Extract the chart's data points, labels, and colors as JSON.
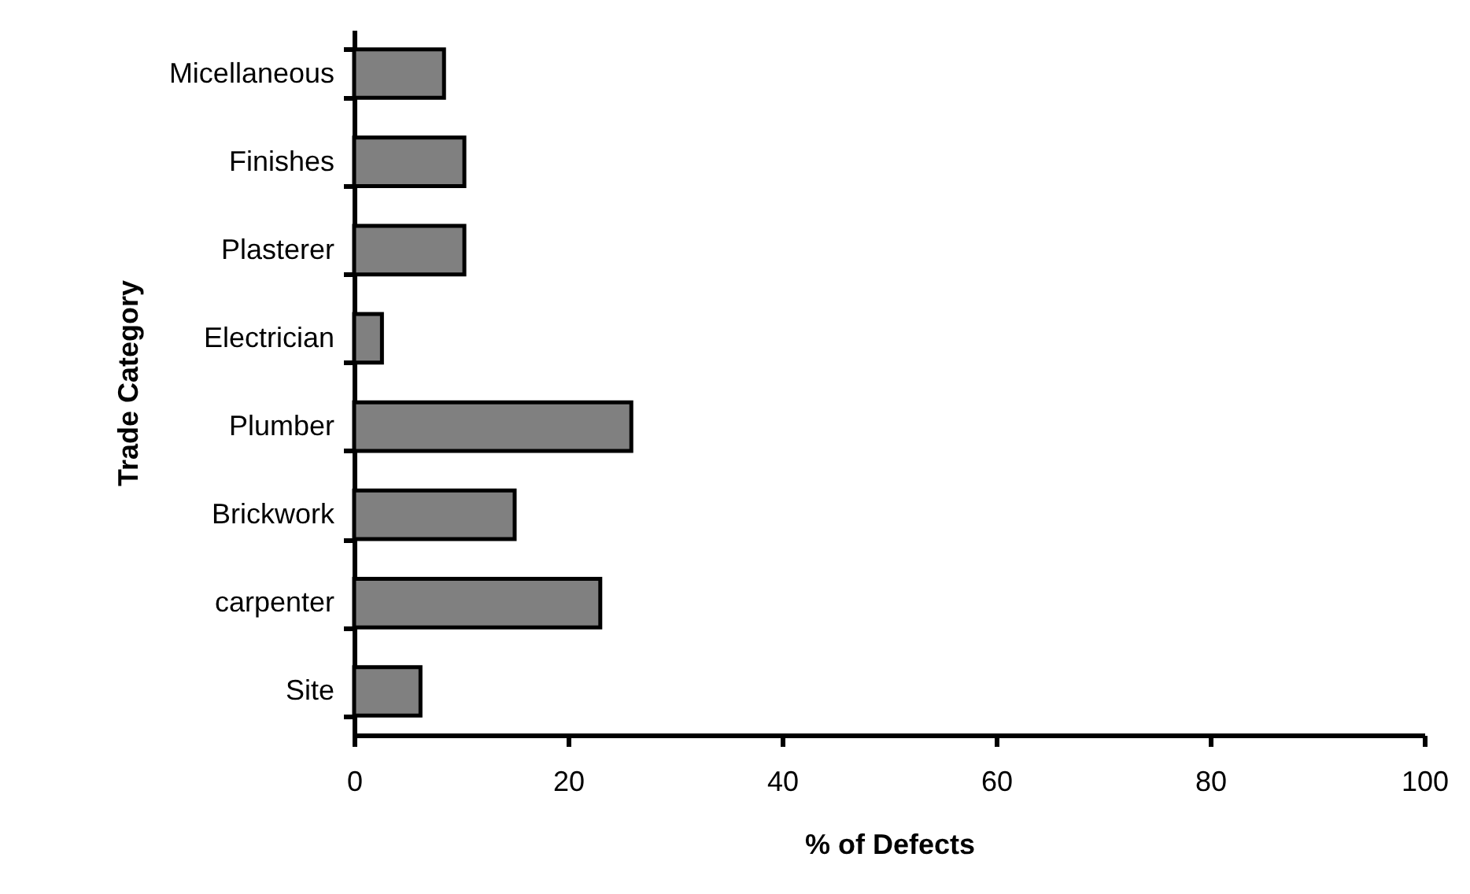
{
  "chart_data": {
    "type": "bar",
    "orientation": "horizontal",
    "xlabel": "% of Defects",
    "ylabel": "Trade Category",
    "categories": [
      "Micellaneous",
      "Finishes",
      "Plasterer",
      "Electrician",
      "Plumber",
      "Brickwork",
      "carpenter",
      "Site"
    ],
    "values": [
      8.4,
      10.3,
      10.3,
      2.6,
      25.9,
      15.0,
      23.0,
      6.2
    ],
    "color": "#808080",
    "xlim": [
      0,
      100
    ],
    "xticks": [
      0,
      20,
      40,
      60,
      80,
      100
    ],
    "grid": false
  }
}
